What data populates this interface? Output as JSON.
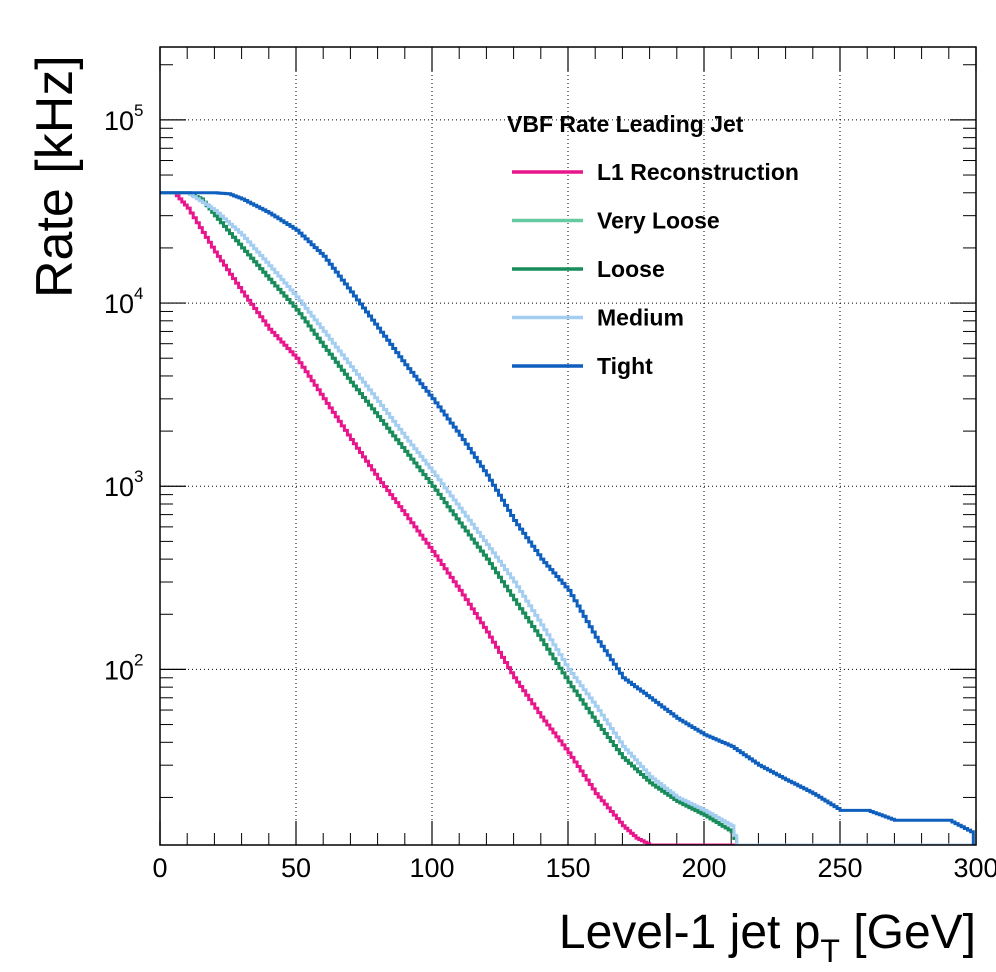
{
  "chart_data": {
    "type": "line",
    "title": "",
    "xlabel_main": "Level-1 jet p",
    "xlabel_sub": "T",
    "xlabel_unit": " [GeV]",
    "ylabel": "Rate [kHz]",
    "xlim": [
      0,
      300
    ],
    "ylim": [
      11,
      250000
    ],
    "yscale": "log",
    "grid": true,
    "x_ticks": [
      "0",
      "50",
      "100",
      "150",
      "200",
      "250",
      "300"
    ],
    "y_ticks": [
      {
        "base": "10",
        "exp": "2",
        "value": 100
      },
      {
        "base": "10",
        "exp": "3",
        "value": 1000
      },
      {
        "base": "10",
        "exp": "4",
        "value": 10000
      },
      {
        "base": "10",
        "exp": "5",
        "value": 100000
      }
    ],
    "legend_title": "VBF Rate Leading Jet",
    "legend_position": "top-right",
    "series": [
      {
        "name": "L1 Reconstruction",
        "color": "#e8168c",
        "x": [
          0,
          5,
          10,
          20,
          30,
          40,
          50,
          60,
          70,
          80,
          90,
          100,
          110,
          120,
          130,
          140,
          150,
          160,
          170,
          175,
          180,
          200,
          212
        ],
        "y": [
          40000,
          40000,
          33000,
          19000,
          11500,
          7200,
          5000,
          3000,
          1800,
          1100,
          700,
          440,
          270,
          160,
          90,
          55,
          35,
          21,
          14,
          12,
          11,
          11,
          11
        ]
      },
      {
        "name": "Very Loose",
        "color": "#66c9a0",
        "x": [
          0,
          10,
          15,
          20,
          30,
          40,
          50,
          60,
          70,
          80,
          90,
          100,
          110,
          120,
          130,
          140,
          150,
          160,
          170,
          180,
          190,
          200,
          210,
          212
        ],
        "y": [
          40000,
          40000,
          37000,
          30000,
          20000,
          13500,
          9200,
          5800,
          3700,
          2400,
          1550,
          1000,
          630,
          400,
          240,
          145,
          85,
          52,
          33,
          24,
          19,
          16,
          13,
          11
        ]
      },
      {
        "name": "Loose",
        "color": "#1a8c5c",
        "x": [
          0,
          10,
          15,
          20,
          30,
          40,
          50,
          60,
          70,
          80,
          90,
          100,
          110,
          120,
          130,
          140,
          150,
          160,
          170,
          180,
          190,
          200,
          210,
          212
        ],
        "y": [
          40000,
          40000,
          37000,
          30000,
          20000,
          13500,
          9200,
          5800,
          3700,
          2400,
          1550,
          1000,
          630,
          400,
          240,
          145,
          85,
          52,
          33,
          24,
          19,
          16,
          13,
          11
        ]
      },
      {
        "name": "Medium",
        "color": "#a4cdf2",
        "x": [
          0,
          10,
          20,
          30,
          40,
          50,
          60,
          70,
          80,
          90,
          100,
          110,
          120,
          130,
          140,
          150,
          160,
          170,
          180,
          190,
          200,
          210,
          212,
          250,
          300
        ],
        "y": [
          40000,
          40000,
          32000,
          23500,
          16000,
          10800,
          7000,
          4500,
          2900,
          1850,
          1200,
          760,
          480,
          300,
          175,
          100,
          63,
          38,
          26,
          20,
          17,
          14,
          11,
          11,
          11
        ]
      },
      {
        "name": "Tight",
        "color": "#0f5fbe",
        "x": [
          0,
          20,
          25,
          30,
          40,
          50,
          60,
          70,
          80,
          90,
          100,
          110,
          120,
          130,
          140,
          150,
          160,
          170,
          180,
          190,
          200,
          210,
          220,
          230,
          240,
          250,
          260,
          270,
          280,
          290,
          298,
          299
        ],
        "y": [
          40000,
          40000,
          39500,
          37000,
          31000,
          25000,
          18000,
          11500,
          7300,
          4600,
          3000,
          1900,
          1150,
          650,
          400,
          270,
          150,
          90,
          70,
          54,
          44,
          38,
          30,
          25,
          21,
          17,
          17,
          15,
          15,
          15,
          13,
          11
        ]
      }
    ]
  }
}
